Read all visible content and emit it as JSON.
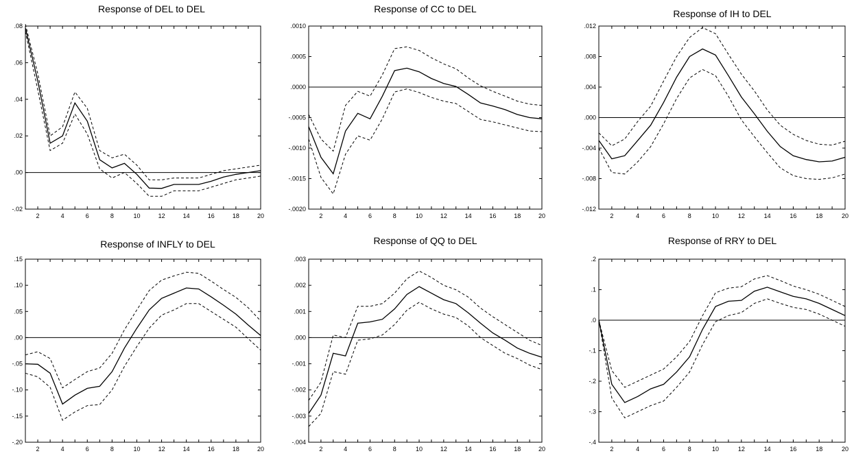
{
  "chart_data": [
    {
      "type": "line",
      "title": "Response of DEL to DEL",
      "x": [
        1,
        2,
        3,
        4,
        5,
        6,
        7,
        8,
        9,
        10,
        11,
        12,
        13,
        14,
        15,
        16,
        17,
        18,
        19,
        20
      ],
      "xticks": [
        "2",
        "4",
        "6",
        "8",
        "10",
        "12",
        "14",
        "16",
        "18",
        "20"
      ],
      "yticks": [
        ".08",
        ".06",
        ".04",
        ".02",
        ".00",
        "-.02"
      ],
      "ylim": [
        -0.02,
        0.08
      ],
      "series": [
        {
          "role": "response",
          "values": [
            0.079,
            0.05,
            0.016,
            0.02,
            0.038,
            0.028,
            0.007,
            0.0025,
            0.005,
            -0.001,
            -0.0085,
            -0.0087,
            -0.0065,
            -0.0065,
            -0.0065,
            -0.0048,
            -0.0025,
            -0.001,
            0.0,
            0.001
          ]
        },
        {
          "role": "upper",
          "values": [
            0.081,
            0.054,
            0.02,
            0.025,
            0.044,
            0.035,
            0.012,
            0.008,
            0.01,
            0.004,
            -0.004,
            -0.004,
            -0.003,
            -0.003,
            -0.003,
            -0.001,
            0.001,
            0.002,
            0.003,
            0.004
          ]
        },
        {
          "role": "lower",
          "values": [
            0.077,
            0.045,
            0.012,
            0.016,
            0.032,
            0.021,
            0.002,
            -0.003,
            0.0,
            -0.006,
            -0.013,
            -0.013,
            -0.01,
            -0.01,
            -0.01,
            -0.008,
            -0.006,
            -0.004,
            -0.003,
            -0.002
          ]
        }
      ],
      "zero_line": 0
    },
    {
      "type": "line",
      "title": "Response of CC to DEL",
      "x": [
        1,
        2,
        3,
        4,
        5,
        6,
        7,
        8,
        9,
        10,
        11,
        12,
        13,
        14,
        15,
        16,
        17,
        18,
        19,
        20
      ],
      "xticks": [
        "2",
        "4",
        "6",
        "8",
        "10",
        "12",
        "14",
        "16",
        "18",
        "20"
      ],
      "yticks": [
        ".0010",
        ".0005",
        ".0000",
        "-.0005",
        "-.0010",
        "-.0015",
        "-.0020"
      ],
      "ylim": [
        -0.002,
        0.001
      ],
      "series": [
        {
          "role": "response",
          "values": [
            -0.00065,
            -0.00115,
            -0.00142,
            -0.00072,
            -0.00043,
            -0.00052,
            -0.00015,
            0.00027,
            0.00031,
            0.00025,
            0.00014,
            6e-05,
            1e-05,
            -0.00012,
            -0.00026,
            -0.00031,
            -0.00037,
            -0.00045,
            -0.0005,
            -0.00052
          ]
        },
        {
          "role": "upper",
          "values": [
            -0.00045,
            -0.00085,
            -0.00105,
            -0.0003,
            -7e-05,
            -0.00015,
            0.0002,
            0.00063,
            0.00066,
            0.0006,
            0.00048,
            0.00038,
            0.0003,
            0.00015,
            2e-05,
            -7e-05,
            -0.00015,
            -0.00023,
            -0.00028,
            -0.0003
          ]
        },
        {
          "role": "lower",
          "values": [
            -0.00085,
            -0.00148,
            -0.00175,
            -0.0011,
            -0.0008,
            -0.00087,
            -0.00052,
            -8e-05,
            -3e-05,
            -9e-05,
            -0.00017,
            -0.00023,
            -0.00027,
            -0.0004,
            -0.00053,
            -0.00057,
            -0.00062,
            -0.00067,
            -0.00072,
            -0.00073
          ]
        }
      ],
      "zero_line": 0
    },
    {
      "type": "line",
      "title": "Response of IH to DEL",
      "x": [
        1,
        2,
        3,
        4,
        5,
        6,
        7,
        8,
        9,
        10,
        11,
        12,
        13,
        14,
        15,
        16,
        17,
        18,
        19,
        20
      ],
      "xticks": [
        "2",
        "4",
        "6",
        "8",
        "10",
        "12",
        "14",
        "16",
        "18",
        "20"
      ],
      "yticks": [
        ".012",
        ".008",
        ".004",
        ".000",
        "-.004",
        "-.008",
        "-.012"
      ],
      "ylim": [
        -0.012,
        0.012
      ],
      "series": [
        {
          "role": "response",
          "values": [
            -0.003,
            -0.0054,
            -0.005,
            -0.003,
            -0.001,
            0.002,
            0.0053,
            0.008,
            0.009,
            0.0082,
            0.0055,
            0.0027,
            0.0005,
            -0.0018,
            -0.0038,
            -0.005,
            -0.0055,
            -0.0058,
            -0.0057,
            -0.0052
          ]
        },
        {
          "role": "upper",
          "values": [
            -0.002,
            -0.0037,
            -0.0028,
            -0.0005,
            0.0015,
            0.0048,
            0.008,
            0.0105,
            0.0118,
            0.011,
            0.0083,
            0.0057,
            0.0035,
            0.001,
            -0.001,
            -0.0022,
            -0.003,
            -0.0035,
            -0.0036,
            -0.0031
          ]
        },
        {
          "role": "lower",
          "values": [
            -0.004,
            -0.0072,
            -0.0074,
            -0.0058,
            -0.0038,
            -0.0008,
            0.0025,
            0.0052,
            0.0063,
            0.0055,
            0.0028,
            -0.0003,
            -0.0025,
            -0.0046,
            -0.0066,
            -0.0076,
            -0.008,
            -0.0081,
            -0.0079,
            -0.0074
          ]
        }
      ],
      "zero_line": 0
    },
    {
      "type": "line",
      "title": "Response of INFLY to DEL",
      "x": [
        1,
        2,
        3,
        4,
        5,
        6,
        7,
        8,
        9,
        10,
        11,
        12,
        13,
        14,
        15,
        16,
        17,
        18,
        19,
        20
      ],
      "xticks": [
        "2",
        "4",
        "6",
        "8",
        "10",
        "12",
        "14",
        "16",
        "18",
        "20"
      ],
      "yticks": [
        ".15",
        ".10",
        ".05",
        ".00",
        "-.05",
        "-.10",
        "-.15",
        "-.20"
      ],
      "ylim": [
        -0.2,
        0.15
      ],
      "series": [
        {
          "role": "response",
          "values": [
            -0.05,
            -0.051,
            -0.068,
            -0.127,
            -0.11,
            -0.097,
            -0.093,
            -0.065,
            -0.02,
            0.018,
            0.053,
            0.075,
            0.085,
            0.095,
            0.093,
            0.078,
            0.062,
            0.045,
            0.024,
            0.004
          ]
        },
        {
          "role": "upper",
          "values": [
            -0.033,
            -0.027,
            -0.04,
            -0.096,
            -0.08,
            -0.065,
            -0.058,
            -0.03,
            0.015,
            0.053,
            0.09,
            0.11,
            0.118,
            0.125,
            0.123,
            0.108,
            0.092,
            0.077,
            0.057,
            0.032
          ]
        },
        {
          "role": "lower",
          "values": [
            -0.068,
            -0.075,
            -0.095,
            -0.158,
            -0.142,
            -0.13,
            -0.128,
            -0.1,
            -0.055,
            -0.017,
            0.018,
            0.043,
            0.053,
            0.065,
            0.065,
            0.05,
            0.035,
            0.02,
            -0.002,
            -0.024
          ]
        }
      ],
      "zero_line": 0
    },
    {
      "type": "line",
      "title": "Response of QQ to DEL",
      "x": [
        1,
        2,
        3,
        4,
        5,
        6,
        7,
        8,
        9,
        10,
        11,
        12,
        13,
        14,
        15,
        16,
        17,
        18,
        19,
        20
      ],
      "xticks": [
        "2",
        "4",
        "6",
        "8",
        "10",
        "12",
        "14",
        "16",
        "18",
        "20"
      ],
      "yticks": [
        ".003",
        ".002",
        ".001",
        ".000",
        "-.001",
        "-.002",
        "-.003",
        "-.004"
      ],
      "ylim": [
        -0.004,
        0.003
      ],
      "series": [
        {
          "role": "response",
          "values": [
            -0.0029,
            -0.0022,
            -0.0006,
            -0.0007,
            0.00055,
            0.0006,
            0.0007,
            0.0011,
            0.00165,
            0.00195,
            0.0017,
            0.00145,
            0.0013,
            0.00095,
            0.00055,
            0.00018,
            -0.0001,
            -0.0004,
            -0.0006,
            -0.00075
          ]
        },
        {
          "role": "upper",
          "values": [
            -0.0024,
            -0.0017,
            0.0001,
            0.0,
            0.0012,
            0.0012,
            0.0013,
            0.0017,
            0.00225,
            0.00255,
            0.0023,
            0.002,
            0.00183,
            0.00155,
            0.00113,
            0.0008,
            0.0005,
            0.0002,
            -0.0001,
            -0.0003
          ]
        },
        {
          "role": "lower",
          "values": [
            -0.0034,
            -0.0029,
            -0.0013,
            -0.0014,
            -0.0001,
            -5e-05,
            0.0001,
            0.0005,
            0.00105,
            0.00135,
            0.0011,
            0.0009,
            0.00077,
            0.00045,
            0.0,
            -0.0003,
            -0.0006,
            -0.0008,
            -0.00105,
            -0.00122
          ]
        }
      ],
      "zero_line": 0
    },
    {
      "type": "line",
      "title": "Response of RRY to DEL",
      "x": [
        1,
        2,
        3,
        4,
        5,
        6,
        7,
        8,
        9,
        10,
        11,
        12,
        13,
        14,
        15,
        16,
        17,
        18,
        19,
        20
      ],
      "xticks": [
        "2",
        "4",
        "6",
        "8",
        "10",
        "12",
        "14",
        "16",
        "18",
        "20"
      ],
      "yticks": [
        ".2",
        ".1",
        ".0",
        "-.1",
        "-.2",
        "-.3",
        "-.4"
      ],
      "ylim": [
        -0.4,
        0.2
      ],
      "series": [
        {
          "role": "response",
          "values": [
            0.0,
            -0.21,
            -0.27,
            -0.25,
            -0.225,
            -0.21,
            -0.17,
            -0.12,
            -0.03,
            0.045,
            0.062,
            0.065,
            0.095,
            0.108,
            0.093,
            0.078,
            0.07,
            0.055,
            0.035,
            0.015
          ]
        },
        {
          "role": "upper",
          "values": [
            0.0,
            -0.165,
            -0.22,
            -0.2,
            -0.18,
            -0.16,
            -0.12,
            -0.07,
            0.015,
            0.09,
            0.105,
            0.11,
            0.135,
            0.146,
            0.13,
            0.112,
            0.1,
            0.085,
            0.065,
            0.045
          ]
        },
        {
          "role": "lower",
          "values": [
            0.0,
            -0.255,
            -0.32,
            -0.3,
            -0.28,
            -0.265,
            -0.22,
            -0.17,
            -0.08,
            -0.005,
            0.015,
            0.025,
            0.055,
            0.07,
            0.055,
            0.042,
            0.035,
            0.02,
            0.0,
            -0.02
          ]
        }
      ],
      "zero_line": 0
    }
  ]
}
